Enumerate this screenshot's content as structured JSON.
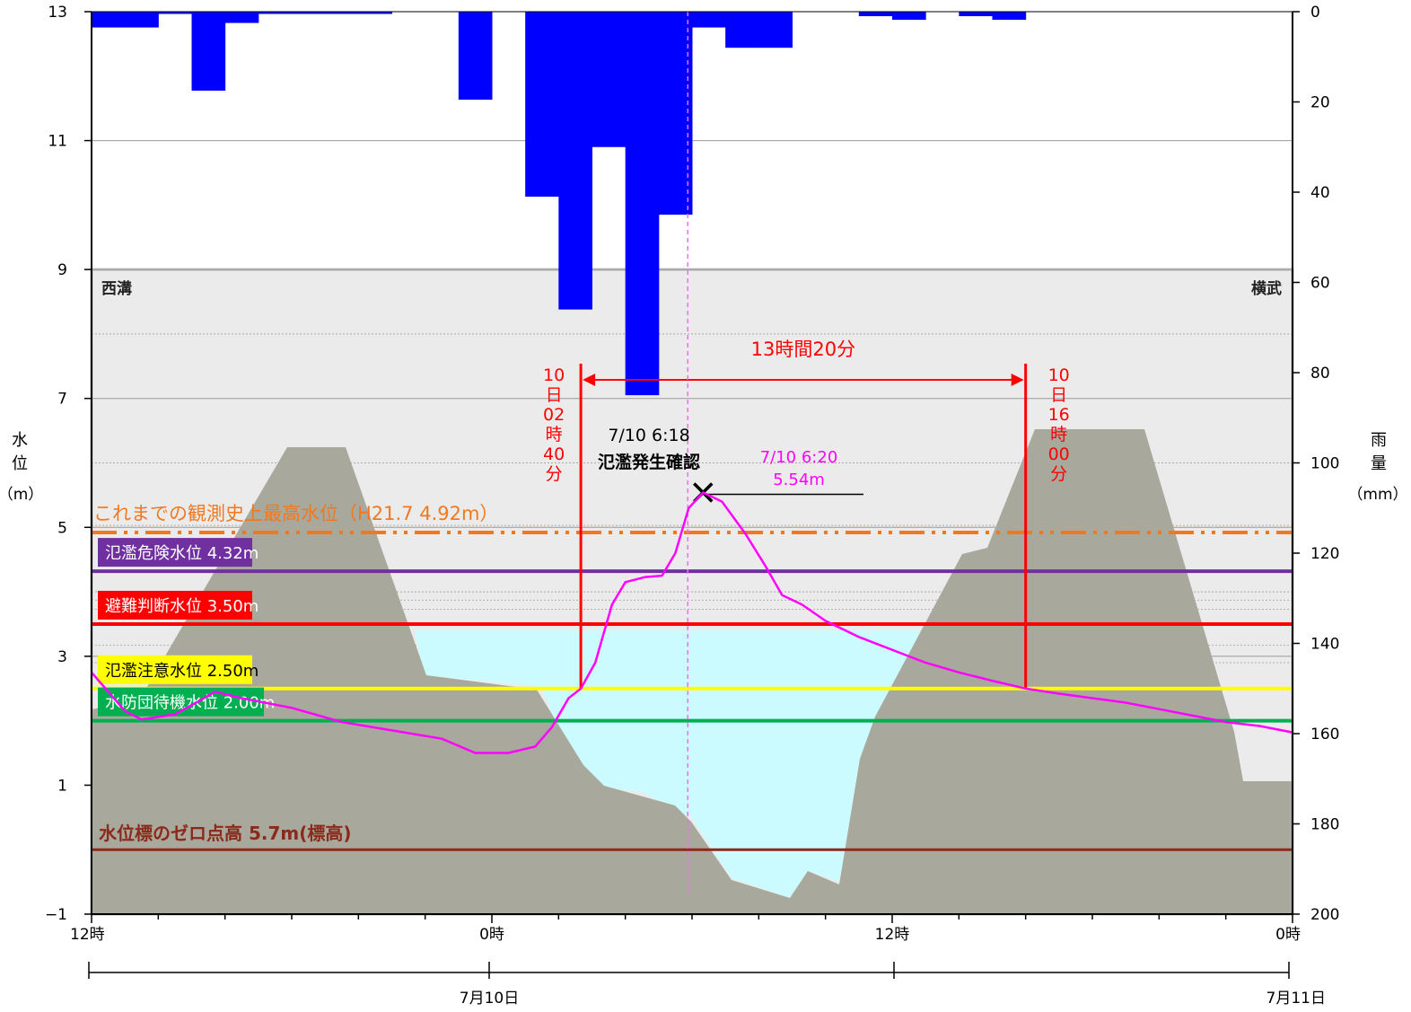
{
  "chart_data": {
    "type": "line",
    "x_axis": {
      "ticks": [
        "12時",
        "0時",
        "12時",
        "0時"
      ],
      "date_labels": [
        "7月10日",
        "7月11日"
      ]
    },
    "y_left": {
      "label": "水位",
      "label_chars": [
        "水",
        "位"
      ],
      "unit": "（m）",
      "ticks": [
        "−1",
        "1",
        "3",
        "5",
        "7",
        "9",
        "11",
        "13"
      ],
      "range": [
        -1,
        13
      ]
    },
    "y_right": {
      "label": "雨量",
      "label_chars": [
        "雨",
        "量"
      ],
      "unit": "（mm）",
      "ticks": [
        "0",
        "20",
        "40",
        "60",
        "80",
        "100",
        "120",
        "140",
        "160",
        "180",
        "200"
      ],
      "range": [
        0,
        200
      ],
      "inverted": true
    },
    "bank_labels": {
      "left": "西溝",
      "right": "横武"
    },
    "thresholds": [
      {
        "label": "これまでの観測史上最高水位（H21.7 4.92m）",
        "value": 4.92,
        "color": "#f07820",
        "style": "dashdot"
      },
      {
        "label": "氾濫危険水位 4.32m",
        "value": 4.32,
        "color": "#7030a0",
        "style": "solid"
      },
      {
        "label": "避難判断水位 3.50m",
        "value": 3.5,
        "color": "#ff0000",
        "style": "solid"
      },
      {
        "label": "氾濫注意水位 2.50m",
        "value": 2.5,
        "color": "#ffff00",
        "style": "solid"
      },
      {
        "label": "水防団待機水位 2.00m",
        "value": 2.0,
        "color": "#00b050",
        "style": "solid"
      },
      {
        "label": "水位標のゼロ点高 5.7m(標高)",
        "value": 0.0,
        "color": "#8b2a1a",
        "style": "solid"
      }
    ],
    "annotations": {
      "duration": "13時間20分",
      "start_chars": [
        "10",
        "日",
        "02",
        "時",
        "40",
        "分"
      ],
      "end_chars": [
        "10",
        "日",
        "16",
        "時",
        "00",
        "分"
      ],
      "flood_time": "7/10 6:18",
      "flood_text": "氾濫発生確認",
      "peak_time": "7/10 6:20",
      "peak_value": "5.54m"
    },
    "rain_hourly_mm": [
      {
        "hour": -12,
        "mm": 3.5
      },
      {
        "hour": -11,
        "mm": 3.5
      },
      {
        "hour": -10,
        "mm": 0.5
      },
      {
        "hour": -9,
        "mm": 17.5
      },
      {
        "hour": -8,
        "mm": 2.5
      },
      {
        "hour": -7,
        "mm": 0.5
      },
      {
        "hour": -6,
        "mm": 0.5
      },
      {
        "hour": -5,
        "mm": 0.5
      },
      {
        "hour": -4,
        "mm": 0.5
      },
      {
        "hour": -3,
        "mm": 0
      },
      {
        "hour": -2,
        "mm": 0
      },
      {
        "hour": -1,
        "mm": 19.5
      },
      {
        "hour": 0,
        "mm": 0
      },
      {
        "hour": 1,
        "mm": 41
      },
      {
        "hour": 2,
        "mm": 66
      },
      {
        "hour": 3,
        "mm": 30
      },
      {
        "hour": 4,
        "mm": 85
      },
      {
        "hour": 5,
        "mm": 45
      },
      {
        "hour": 6,
        "mm": 3.5
      },
      {
        "hour": 7,
        "mm": 8
      },
      {
        "hour": 8,
        "mm": 8
      },
      {
        "hour": 9,
        "mm": 0
      },
      {
        "hour": 10,
        "mm": 0
      },
      {
        "hour": 11,
        "mm": 1
      },
      {
        "hour": 12,
        "mm": 1.8
      },
      {
        "hour": 13,
        "mm": 0
      },
      {
        "hour": 14,
        "mm": 1
      },
      {
        "hour": 15,
        "mm": 1.8
      }
    ],
    "water_level_m": [
      {
        "hour": -12,
        "m": 2.75
      },
      {
        "hour": -11.5,
        "m": 2.45
      },
      {
        "hour": -11,
        "m": 2.15
      },
      {
        "hour": -10.5,
        "m": 2.02
      },
      {
        "hour": -9.5,
        "m": 2.1
      },
      {
        "hour": -8.8,
        "m": 2.3
      },
      {
        "hour": -8.3,
        "m": 2.45
      },
      {
        "hour": -7.5,
        "m": 2.35
      },
      {
        "hour": -6,
        "m": 2.2
      },
      {
        "hour": -4.5,
        "m": 1.98
      },
      {
        "hour": -3,
        "m": 1.85
      },
      {
        "hour": -1.5,
        "m": 1.72
      },
      {
        "hour": -0.5,
        "m": 1.5
      },
      {
        "hour": 0.5,
        "m": 1.5
      },
      {
        "hour": 1.3,
        "m": 1.6
      },
      {
        "hour": 1.8,
        "m": 1.9
      },
      {
        "hour": 2.3,
        "m": 2.35
      },
      {
        "hour": 2.67,
        "m": 2.5
      },
      {
        "hour": 3.1,
        "m": 2.9
      },
      {
        "hour": 3.6,
        "m": 3.8
      },
      {
        "hour": 4.0,
        "m": 4.15
      },
      {
        "hour": 4.6,
        "m": 4.23
      },
      {
        "hour": 5.1,
        "m": 4.25
      },
      {
        "hour": 5.5,
        "m": 4.6
      },
      {
        "hour": 5.9,
        "m": 5.3
      },
      {
        "hour": 6.33,
        "m": 5.54
      },
      {
        "hour": 6.9,
        "m": 5.4
      },
      {
        "hour": 7.6,
        "m": 4.9
      },
      {
        "hour": 8.2,
        "m": 4.4
      },
      {
        "hour": 8.7,
        "m": 3.95
      },
      {
        "hour": 9.3,
        "m": 3.8
      },
      {
        "hour": 10,
        "m": 3.55
      },
      {
        "hour": 11,
        "m": 3.3
      },
      {
        "hour": 12,
        "m": 3.1
      },
      {
        "hour": 13,
        "m": 2.9
      },
      {
        "hour": 14,
        "m": 2.75
      },
      {
        "hour": 15,
        "m": 2.62
      },
      {
        "hour": 16,
        "m": 2.5
      },
      {
        "hour": 17,
        "m": 2.42
      },
      {
        "hour": 18,
        "m": 2.35
      },
      {
        "hour": 19,
        "m": 2.28
      },
      {
        "hour": 20,
        "m": 2.18
      },
      {
        "hour": 21,
        "m": 2.08
      },
      {
        "hour": 22,
        "m": 1.98
      },
      {
        "hour": 23,
        "m": 1.92
      },
      {
        "hour": 24,
        "m": 1.82
      }
    ],
    "grid": true
  },
  "colors": {
    "rain": "#0000ff",
    "water_level": "#ff00ff",
    "river_bed": "#a9a89c",
    "water": "#ccfbff",
    "background_lower": "#ebebeb",
    "peak_annotation": "#ff00ff",
    "duration_annotation": "#ff0000"
  }
}
